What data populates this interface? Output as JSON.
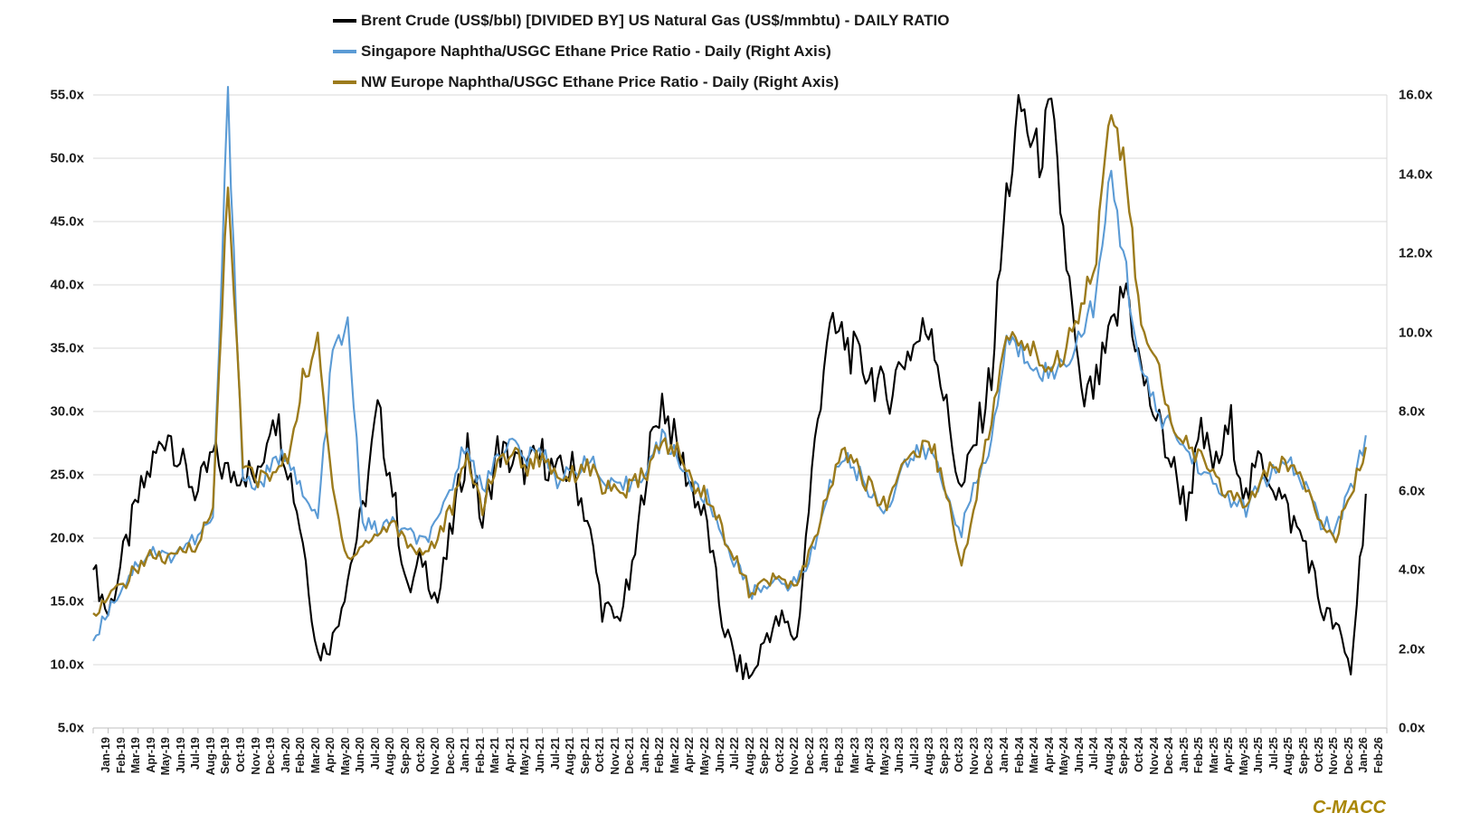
{
  "legend": {
    "items": [
      {
        "label": "Brent Crude (US$/bbl) [DIVIDED BY] US Natural Gas (US$/mmbtu) - DAILY RATIO",
        "color": "#000000"
      },
      {
        "label": "Singapore Naphtha/USGC Ethane Price Ratio - Daily (Right Axis)",
        "color": "#5B9BD5"
      },
      {
        "label": "NW Europe Naphtha/USGC Ethane Price Ratio - Daily (Right Axis)",
        "color": "#9C7B1C"
      }
    ]
  },
  "branding": {
    "logo_text": "C-MACC",
    "color": "#A98600"
  },
  "colors": {
    "grid": "#D9D9D9",
    "axis": "#BFBFBF",
    "black_series": "#000000",
    "blue_series": "#5B9BD5",
    "gold_series": "#9C7B1C",
    "text": "#1a1a1a"
  },
  "chart_data": {
    "type": "line",
    "title": "",
    "grid": "horizontal",
    "legend_position": "top",
    "left_axis": {
      "min": 5.0,
      "max": 55.0,
      "step": 5.0,
      "suffix": "x",
      "ticks": [
        "55.0x",
        "50.0x",
        "45.0x",
        "40.0x",
        "35.0x",
        "30.0x",
        "25.0x",
        "20.0x",
        "15.0x",
        "10.0x",
        "5.0x"
      ]
    },
    "right_axis": {
      "min": 0.0,
      "max": 16.0,
      "step": 2.0,
      "suffix": "x",
      "ticks": [
        "16.0x",
        "14.0x",
        "12.0x",
        "10.0x",
        "8.0x",
        "6.0x",
        "4.0x",
        "2.0x",
        "0.0x"
      ]
    },
    "x_labels": [
      "Jan-19",
      "Feb-19",
      "Mar-19",
      "Apr-19",
      "May-19",
      "Jun-19",
      "Jul-19",
      "Aug-19",
      "Sep-19",
      "Oct-19",
      "Nov-19",
      "Dec-19",
      "Jan-20",
      "Feb-20",
      "Mar-20",
      "Apr-20",
      "May-20",
      "Jun-20",
      "Jul-20",
      "Aug-20",
      "Sep-20",
      "Oct-20",
      "Nov-20",
      "Dec-20",
      "Jan-21",
      "Feb-21",
      "Mar-21",
      "Apr-21",
      "May-21",
      "Jun-21",
      "Jul-21",
      "Aug-21",
      "Sep-21",
      "Oct-21",
      "Nov-21",
      "Dec-21",
      "Jan-22",
      "Feb-22",
      "Mar-22",
      "Apr-22",
      "May-22",
      "Jun-22",
      "Jul-22",
      "Aug-22",
      "Sep-22",
      "Oct-22",
      "Nov-22",
      "Dec-22",
      "Jan-23",
      "Feb-23",
      "Mar-23",
      "Apr-23",
      "May-23",
      "Jun-23",
      "Jul-23",
      "Aug-23",
      "Sep-23",
      "Oct-23",
      "Nov-23",
      "Dec-23",
      "Jan-24",
      "Feb-24",
      "Mar-24",
      "Apr-24",
      "May-24",
      "Jun-24",
      "Jul-24",
      "Aug-24",
      "Sep-24",
      "Oct-24",
      "Nov-24",
      "Dec-24",
      "Jan-25",
      "Feb-25",
      "Mar-25",
      "Apr-25",
      "May-25",
      "Jun-25",
      "Jul-25",
      "Aug-25",
      "Sep-25",
      "Oct-25",
      "Nov-25",
      "Dec-25",
      "Jan-26",
      "Feb-26"
    ],
    "series": [
      {
        "name": "Brent Crude (US$/bbl) [DIVIDED BY] US Natural Gas (US$/mmbtu) - DAILY RATIO",
        "axis": "left",
        "color": "#000000",
        "values": [
          17.5,
          14.0,
          18.5,
          23.0,
          26.0,
          28.7,
          25.5,
          23.5,
          26.5,
          25.0,
          25.5,
          24.5,
          30.5,
          26.0,
          20.0,
          10.8,
          12.0,
          17.0,
          22.0,
          30.0,
          24.0,
          15.5,
          18.5,
          15.0,
          21.0,
          27.5,
          21.0,
          27.0,
          26.0,
          25.5,
          26.5,
          25.0,
          25.5,
          21.5,
          14.5,
          13.5,
          17.0,
          26.0,
          31.0,
          27.0,
          24.0,
          21.0,
          13.5,
          10.0,
          9.0,
          12.5,
          13.5,
          12.0,
          25.0,
          36.0,
          36.0,
          34.0,
          33.0,
          31.0,
          34.0,
          35.5,
          37.0,
          30.0,
          23.5,
          28.0,
          33.0,
          47.0,
          54.0,
          50.0,
          53.0,
          42.0,
          30.5,
          32.0,
          36.0,
          40.0,
          33.0,
          29.5,
          26.0,
          22.5,
          28.0,
          25.5,
          29.0,
          23.0,
          26.5,
          24.0,
          21.5,
          19.5,
          14.5,
          13.0,
          9.5,
          23.5
        ]
      },
      {
        "name": "Singapore Naphtha/USGC Ethane Price Ratio - Daily (Right Axis)",
        "axis": "right",
        "color": "#5B9BD5",
        "values": [
          2.2,
          3.0,
          3.6,
          4.2,
          4.5,
          4.3,
          4.6,
          4.8,
          5.3,
          15.9,
          6.3,
          6.1,
          6.6,
          7.0,
          5.8,
          5.3,
          9.5,
          10.1,
          5.2,
          5.0,
          5.2,
          4.9,
          4.7,
          5.1,
          6.2,
          7.3,
          5.9,
          7.0,
          7.2,
          6.8,
          7.0,
          6.3,
          6.4,
          6.9,
          6.2,
          6.0,
          6.2,
          6.6,
          7.3,
          6.9,
          6.1,
          5.8,
          4.9,
          4.1,
          3.4,
          3.7,
          3.6,
          3.7,
          4.4,
          5.9,
          6.9,
          6.5,
          5.9,
          5.5,
          6.6,
          6.9,
          7.0,
          5.9,
          5.0,
          6.2,
          7.2,
          9.8,
          9.5,
          9.2,
          8.9,
          9.3,
          10.0,
          10.9,
          14.0,
          11.5,
          9.0,
          8.0,
          7.6,
          7.0,
          6.6,
          6.0,
          5.8,
          5.5,
          6.2,
          6.5,
          6.6,
          6.1,
          5.2,
          5.0,
          6.0,
          7.4
        ]
      },
      {
        "name": "NW Europe Naphtha/USGC Ethane Price Ratio - Daily (Right Axis)",
        "axis": "right",
        "color": "#9C7B1C",
        "values": [
          2.9,
          3.3,
          3.6,
          4.1,
          4.4,
          4.2,
          4.5,
          4.7,
          5.5,
          14.0,
          6.6,
          6.3,
          6.4,
          6.8,
          8.8,
          9.7,
          6.0,
          4.3,
          4.6,
          4.9,
          5.2,
          4.7,
          4.4,
          4.8,
          5.6,
          6.8,
          5.6,
          6.7,
          7.0,
          6.6,
          6.9,
          6.4,
          6.4,
          6.7,
          6.1,
          5.9,
          6.1,
          6.5,
          7.2,
          7.0,
          6.2,
          5.9,
          5.0,
          4.2,
          3.3,
          3.8,
          3.7,
          3.6,
          4.5,
          5.8,
          7.0,
          6.6,
          6.0,
          5.6,
          6.7,
          7.0,
          7.2,
          6.0,
          4.0,
          6.0,
          7.8,
          9.8,
          9.8,
          9.4,
          9.1,
          9.6,
          10.8,
          12.0,
          15.7,
          14.0,
          10.0,
          9.2,
          7.8,
          7.2,
          6.8,
          6.2,
          5.9,
          5.6,
          6.3,
          6.6,
          6.7,
          6.2,
          5.3,
          4.9,
          5.8,
          7.1
        ]
      }
    ]
  }
}
